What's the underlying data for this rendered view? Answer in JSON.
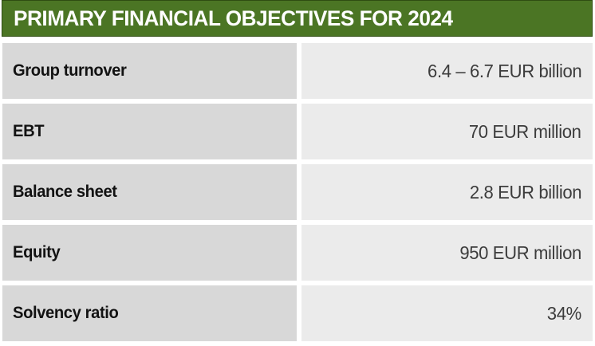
{
  "chart_data": {
    "type": "table",
    "title": "PRIMARY FINANCIAL OBJECTIVES FOR 2024",
    "columns": [
      "metric",
      "target"
    ],
    "rows": [
      {
        "metric": "Group turnover",
        "target": "6.4 – 6.7 EUR billion"
      },
      {
        "metric": "EBT",
        "target": "70 EUR million"
      },
      {
        "metric": "Balance sheet",
        "target": "2.8 EUR billion"
      },
      {
        "metric": "Equity",
        "target": "950 EUR million"
      },
      {
        "metric": "Solvency ratio",
        "target": "34%"
      }
    ]
  },
  "colors": {
    "header_green": "#4b7524",
    "header_border": "#2f4d12",
    "label_cell_bg": "#d8d8d8",
    "value_cell_bg": "#ebebeb",
    "label_text": "#121212",
    "value_text": "#3c3c3c"
  }
}
